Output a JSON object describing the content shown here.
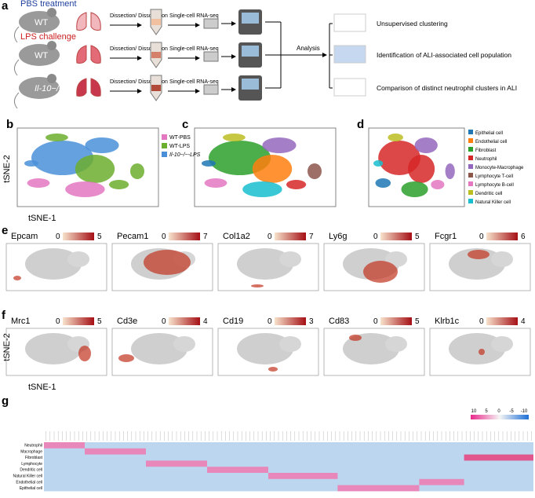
{
  "panel_a": {
    "label": "a",
    "conditions": [
      {
        "title": "PBS treatment",
        "mouse": "WT",
        "step1": "Dissection/ Dissociation",
        "step2": "Single-cell RNA-seq"
      },
      {
        "title": "LPS challenge",
        "mouse": "WT",
        "step1": "Dissection/ Dissociation",
        "step2": "Single-cell RNA-seq"
      },
      {
        "mouse": "Il-10−/−",
        "step1": "Dissection/ Dissociation",
        "step2": "Single-cell RNA-seq"
      }
    ],
    "analysis": "Analysis",
    "outputs": [
      "Unsupervised clustering",
      "Identification of ALI-associated cell population",
      "Comparison of distinct neutrophil clusters in ALI"
    ]
  },
  "panel_b": {
    "label": "b",
    "legend": [
      {
        "name": "WT-PBS",
        "color": "#e377c2"
      },
      {
        "name": "WT-LPS",
        "color": "#6cae2e"
      },
      {
        "name": "Il-10−/−-LPS",
        "color": "#4a90d9"
      }
    ]
  },
  "panel_c": {
    "label": "c"
  },
  "panel_d": {
    "label": "d",
    "legend": [
      {
        "name": "Epithelial cell",
        "color": "#1f77b4"
      },
      {
        "name": "Endothelial cell",
        "color": "#ff7f0e"
      },
      {
        "name": "Fibroblast",
        "color": "#2ca02c"
      },
      {
        "name": "Neutrophil",
        "color": "#d62728"
      },
      {
        "name": "Monocyte-Macrophage",
        "color": "#9467bd"
      },
      {
        "name": "Lymphocyte T-cell",
        "color": "#8c564b"
      },
      {
        "name": "Lymphocyte B-cell",
        "color": "#e377c2"
      },
      {
        "name": "Dendritic cell",
        "color": "#bcbd22"
      },
      {
        "name": "Natural Killer cell",
        "color": "#17becf"
      }
    ]
  },
  "tsne_y": "tSNE-2",
  "tsne_x": "tSNE-1",
  "panel_e": {
    "label": "e",
    "genes": [
      {
        "name": "Epcam",
        "min": 0,
        "max": 5
      },
      {
        "name": "Pecam1",
        "min": 0,
        "max": 7
      },
      {
        "name": "Col1a2",
        "min": 0,
        "max": 7
      },
      {
        "name": "Ly6g",
        "min": 0,
        "max": 5
      },
      {
        "name": "Fcgr1",
        "min": 0,
        "max": 6
      }
    ]
  },
  "panel_f": {
    "label": "f",
    "genes": [
      {
        "name": "Mrc1",
        "min": 0,
        "max": 5
      },
      {
        "name": "Cd3e",
        "min": 0,
        "max": 4
      },
      {
        "name": "Cd19",
        "min": 0,
        "max": 3
      },
      {
        "name": "Cd83",
        "min": 0,
        "max": 5
      },
      {
        "name": "Klrb1c",
        "min": 0,
        "max": 4
      }
    ]
  },
  "panel_g": {
    "label": "g",
    "rows": [
      "Neutrophil",
      "Macrophage",
      "Fibroblast",
      "Lymphocyte",
      "Dendritic cell",
      "Natural Killer cell",
      "Endothelial cell",
      "Epithelial cell"
    ],
    "scale": [
      10,
      5,
      0,
      -5,
      -10
    ]
  }
}
